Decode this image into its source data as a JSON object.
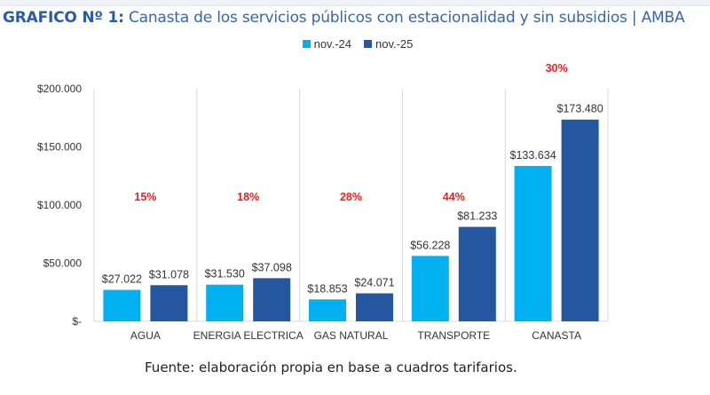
{
  "title_prefix": "GRAFICO Nº 1:",
  "title_rest": " Canasta de los servicios públicos con estacionalidad y sin subsidios | AMBA",
  "source": "Fuente: elaboración propia en base a cuadros tarifarios.",
  "colors": {
    "nov24": "#00b0f0",
    "nov25": "#2457a0",
    "pct": "#ff1a1a",
    "title": "#2a5ba8"
  },
  "chart_data": {
    "type": "bar",
    "title": "GRAFICO Nº 1: Canasta de los servicios públicos con estacionalidad y sin subsidios | AMBA",
    "xlabel": "",
    "ylabel": "",
    "ylim": [
      0,
      200000
    ],
    "yticks": [
      0,
      50000,
      100000,
      150000,
      200000
    ],
    "ytick_labels": [
      "$-",
      "$50.000",
      "$100.000",
      "$150.000",
      "$200.000"
    ],
    "categories": [
      "AGUA",
      "ENERGIA ELECTRICA",
      "GAS NATURAL",
      "TRANSPORTE",
      "CANASTA"
    ],
    "series": [
      {
        "name": "nov.-24",
        "values": [
          27022,
          31530,
          18853,
          56228,
          133634
        ],
        "labels": [
          "$27.022",
          "$31.530",
          "$18.853",
          "$56.228",
          "$133.634"
        ]
      },
      {
        "name": "nov.-25",
        "values": [
          31078,
          37098,
          24071,
          81233,
          173480
        ],
        "labels": [
          "$31.078",
          "$37.098",
          "$24.071",
          "$81.233",
          "$173.480"
        ]
      }
    ],
    "annotations": [
      "15%",
      "18%",
      "28%",
      "44%",
      "30%"
    ],
    "legend_position": "top-center",
    "grid": false
  }
}
